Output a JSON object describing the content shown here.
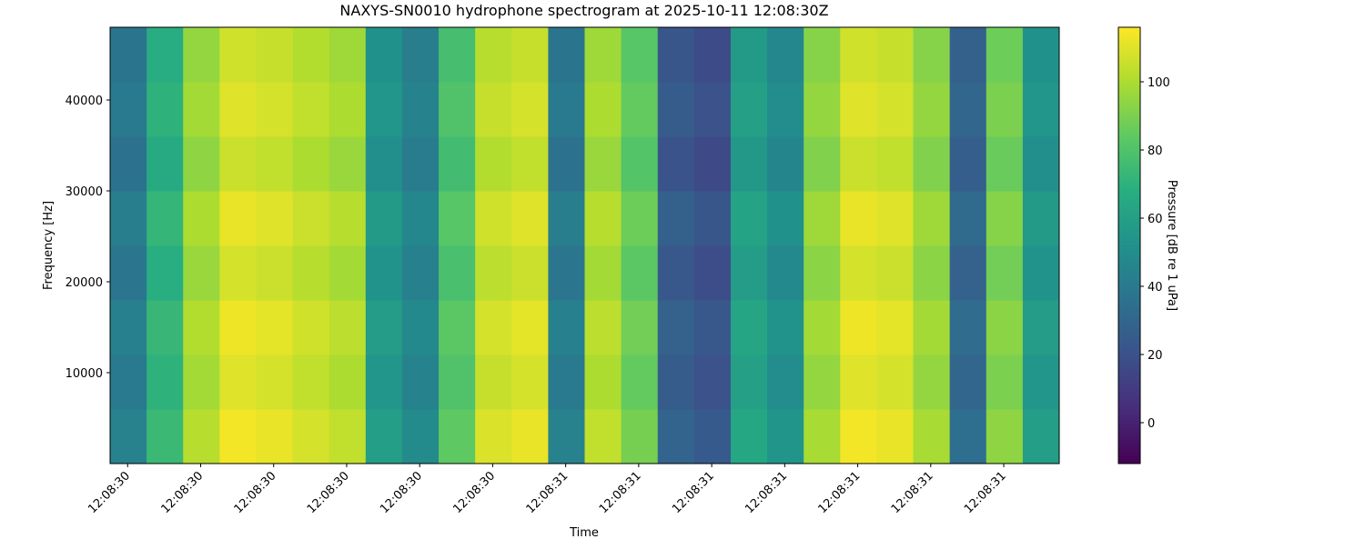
{
  "chart_data": {
    "type": "heatmap",
    "title": "NAXYS-SN0010 hydrophone spectrogram at 2025-10-11 12:08:30Z",
    "xlabel": "Time",
    "ylabel": "Frequency [Hz]",
    "colorbar_label": "Pressure [dB re 1 uPa]",
    "colormap": "viridis",
    "x_edges": [
      30.376,
      30.426,
      30.476,
      30.526,
      30.576,
      30.626,
      30.676,
      30.726,
      30.776,
      30.826,
      30.876,
      30.926,
      30.976,
      31.026,
      31.076,
      31.126,
      31.176,
      31.226,
      31.276,
      31.326,
      31.376,
      31.426,
      31.476,
      31.526,
      31.576,
      31.626,
      31.676
    ],
    "y_edges": [
      0,
      6000,
      12000,
      18000,
      24000,
      30000,
      36000,
      42000,
      48000
    ],
    "z": [
      [
        44,
        74,
        102,
        114,
        112,
        108,
        104,
        59,
        49,
        84,
        109,
        112,
        44,
        104,
        89,
        29,
        24,
        64,
        54,
        99,
        114,
        112,
        99,
        34,
        94,
        59
      ],
      [
        40,
        70,
        98,
        110,
        108,
        104,
        100,
        55,
        45,
        80,
        105,
        108,
        40,
        100,
        85,
        25,
        20,
        60,
        50,
        95,
        110,
        108,
        95,
        30,
        90,
        55
      ],
      [
        43,
        73,
        101,
        113,
        111,
        107,
        103,
        58,
        48,
        83,
        108,
        111,
        43,
        103,
        88,
        28,
        23,
        63,
        53,
        98,
        113,
        111,
        98,
        33,
        93,
        58
      ],
      [
        38,
        68,
        96,
        108,
        106,
        102,
        98,
        53,
        43,
        78,
        103,
        106,
        38,
        98,
        83,
        23,
        18,
        58,
        48,
        93,
        108,
        106,
        93,
        28,
        88,
        53
      ],
      [
        42,
        72,
        100,
        112,
        110,
        106,
        102,
        57,
        47,
        82,
        107,
        110,
        42,
        102,
        87,
        27,
        22,
        62,
        52,
        97,
        112,
        110,
        97,
        32,
        92,
        57
      ],
      [
        36,
        66,
        94,
        106,
        104,
        100,
        96,
        51,
        41,
        76,
        101,
        104,
        36,
        96,
        81,
        21,
        16,
        56,
        46,
        91,
        106,
        104,
        91,
        26,
        86,
        51
      ],
      [
        40,
        70,
        98,
        110,
        108,
        104,
        100,
        55,
        45,
        80,
        105,
        108,
        40,
        100,
        85,
        25,
        20,
        60,
        50,
        95,
        110,
        108,
        95,
        30,
        90,
        55
      ],
      [
        37,
        67,
        95,
        107,
        105,
        101,
        97,
        52,
        42,
        77,
        102,
        105,
        37,
        97,
        82,
        22,
        17,
        57,
        47,
        92,
        107,
        105,
        92,
        27,
        87,
        52
      ]
    ],
    "xlim": [
      30.376,
      31.676
    ],
    "xticks": [
      {
        "value": 30.4,
        "label": "12:08:30"
      },
      {
        "value": 30.5,
        "label": "12:08:30"
      },
      {
        "value": 30.6,
        "label": "12:08:30"
      },
      {
        "value": 30.7,
        "label": "12:08:30"
      },
      {
        "value": 30.8,
        "label": "12:08:30"
      },
      {
        "value": 30.9,
        "label": "12:08:30"
      },
      {
        "value": 31.0,
        "label": "12:08:31"
      },
      {
        "value": 31.1,
        "label": "12:08:31"
      },
      {
        "value": 31.2,
        "label": "12:08:31"
      },
      {
        "value": 31.3,
        "label": "12:08:31"
      },
      {
        "value": 31.4,
        "label": "12:08:31"
      },
      {
        "value": 31.5,
        "label": "12:08:31"
      },
      {
        "value": 31.6,
        "label": "12:08:31"
      }
    ],
    "ylim": [
      0,
      48000
    ],
    "yticks": [
      10000,
      20000,
      30000,
      40000
    ],
    "clim": [
      -12,
      116
    ],
    "cticks": [
      0,
      20,
      40,
      60,
      80,
      100
    ]
  }
}
